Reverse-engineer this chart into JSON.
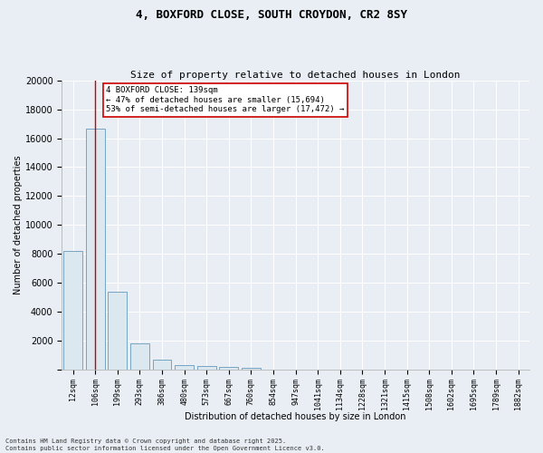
{
  "title_line1": "4, BOXFORD CLOSE, SOUTH CROYDON, CR2 8SY",
  "title_line2": "Size of property relative to detached houses in London",
  "xlabel": "Distribution of detached houses by size in London",
  "ylabel": "Number of detached properties",
  "bar_color": "#dce8f0",
  "bar_edge_color": "#6699bb",
  "categories": [
    "12sqm",
    "106sqm",
    "199sqm",
    "293sqm",
    "386sqm",
    "480sqm",
    "573sqm",
    "667sqm",
    "760sqm",
    "854sqm",
    "947sqm",
    "1041sqm",
    "1134sqm",
    "1228sqm",
    "1321sqm",
    "1415sqm",
    "1508sqm",
    "1602sqm",
    "1695sqm",
    "1789sqm",
    "1882sqm"
  ],
  "values": [
    8200,
    16650,
    5350,
    1800,
    650,
    300,
    220,
    170,
    120,
    0,
    0,
    0,
    0,
    0,
    0,
    0,
    0,
    0,
    0,
    0,
    0
  ],
  "ylim": [
    0,
    20000
  ],
  "yticks": [
    0,
    2000,
    4000,
    6000,
    8000,
    10000,
    12000,
    14000,
    16000,
    18000,
    20000
  ],
  "property_line_x": 1.0,
  "property_line_color": "#cc0000",
  "annotation_text": "4 BOXFORD CLOSE: 139sqm\n← 47% of detached houses are smaller (15,694)\n53% of semi-detached houses are larger (17,472) →",
  "annotation_box_color": "#ffffff",
  "annotation_box_edge": "#cc0000",
  "footer_text": "Contains HM Land Registry data © Crown copyright and database right 2025.\nContains public sector information licensed under the Open Government Licence v3.0.",
  "background_color": "#e8eef4",
  "grid_color": "#ffffff",
  "title_fontsize": 9,
  "subtitle_fontsize": 8,
  "xlabel_fontsize": 7,
  "ylabel_fontsize": 7,
  "ytick_fontsize": 7,
  "xtick_fontsize": 6,
  "annotation_fontsize": 6.5,
  "footer_fontsize": 5
}
